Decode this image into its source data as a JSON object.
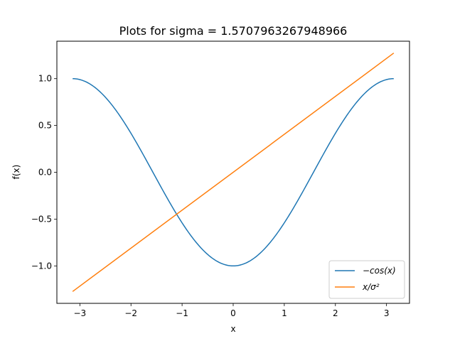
{
  "chart_data": {
    "type": "line",
    "title": "Plots for sigma = 1.5707963267948966",
    "xlabel": "x",
    "ylabel": "f(x)",
    "xlim": [
      -3.45,
      3.45
    ],
    "ylim": [
      -1.4,
      1.4
    ],
    "xticks": [
      -3,
      -2,
      -1,
      0,
      1,
      2,
      3
    ],
    "xtick_labels": [
      "−3",
      "−2",
      "−1",
      "0",
      "1",
      "2",
      "3"
    ],
    "yticks": [
      1.0,
      0.5,
      0.0,
      -0.5,
      -1.0
    ],
    "ytick_labels": [
      "1.0",
      "0.5",
      "0.0",
      "−0.5",
      "−1.0"
    ],
    "grid": false,
    "legend_position": "lower-right",
    "series": [
      {
        "name": "−cos(x)",
        "color": "#1f77b4",
        "x": [
          -3.1416,
          -2.9452,
          -2.7489,
          -2.5525,
          -2.3562,
          -2.1598,
          -1.9635,
          -1.7671,
          -1.5708,
          -1.3744,
          -1.1781,
          -0.9817,
          -0.7854,
          -0.589,
          -0.3927,
          -0.1963,
          0.0,
          0.1963,
          0.3927,
          0.589,
          0.7854,
          0.9817,
          1.1781,
          1.3744,
          1.5708,
          1.7671,
          1.9635,
          2.1598,
          2.3562,
          2.5525,
          2.7489,
          2.9452,
          3.1416
        ],
        "y": [
          1.0,
          0.9808,
          0.9239,
          0.8315,
          0.7071,
          0.5556,
          0.3827,
          0.1951,
          0.0,
          -0.1951,
          -0.3827,
          -0.5556,
          -0.7071,
          -0.8315,
          -0.9239,
          -0.9808,
          -1.0,
          -0.9808,
          -0.9239,
          -0.8315,
          -0.7071,
          -0.5556,
          -0.3827,
          -0.1951,
          0.0,
          0.1951,
          0.3827,
          0.5556,
          0.7071,
          0.8315,
          0.9239,
          0.9808,
          1.0
        ]
      },
      {
        "name": "x/σ²",
        "color": "#ff7f0e",
        "x": [
          -3.1416,
          3.1416
        ],
        "y": [
          -1.2732,
          1.2732
        ]
      }
    ]
  }
}
